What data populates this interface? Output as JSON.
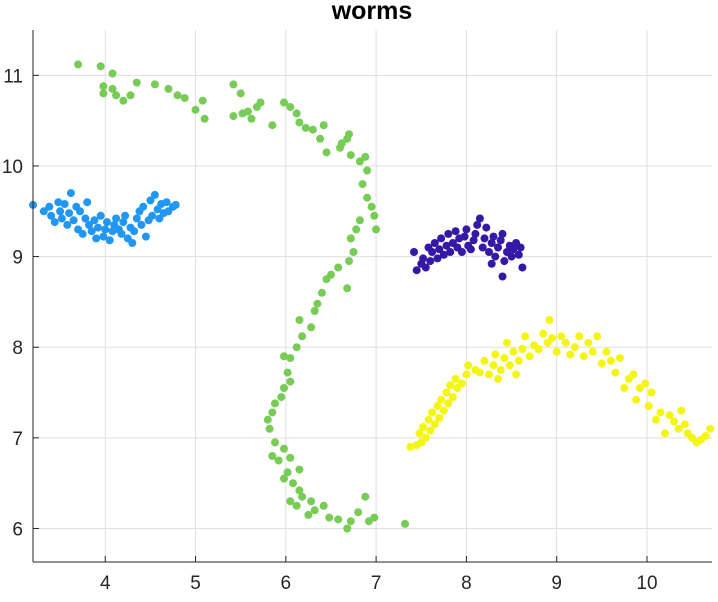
{
  "chart_data": {
    "type": "scatter",
    "title": "worms",
    "xlabel": "",
    "ylabel": "",
    "xlim": [
      3.2,
      10.72
    ],
    "ylim": [
      5.63,
      11.5
    ],
    "x_ticks": [
      4,
      5,
      6,
      7,
      8,
      9,
      10
    ],
    "y_ticks": [
      6,
      7,
      8,
      9,
      10,
      11
    ],
    "grid": true,
    "series": [
      {
        "color": "#2196f3",
        "points": [
          [
            3.2,
            9.57
          ],
          [
            3.32,
            9.5
          ],
          [
            3.38,
            9.55
          ],
          [
            3.4,
            9.45
          ],
          [
            3.44,
            9.38
          ],
          [
            3.48,
            9.6
          ],
          [
            3.5,
            9.5
          ],
          [
            3.52,
            9.42
          ],
          [
            3.55,
            9.58
          ],
          [
            3.58,
            9.35
          ],
          [
            3.6,
            9.48
          ],
          [
            3.62,
            9.7
          ],
          [
            3.65,
            9.4
          ],
          [
            3.68,
            9.55
          ],
          [
            3.7,
            9.3
          ],
          [
            3.72,
            9.5
          ],
          [
            3.75,
            9.25
          ],
          [
            3.78,
            9.42
          ],
          [
            3.8,
            9.6
          ],
          [
            3.82,
            9.35
          ],
          [
            3.85,
            9.28
          ],
          [
            3.88,
            9.4
          ],
          [
            3.9,
            9.2
          ],
          [
            3.92,
            9.32
          ],
          [
            3.95,
            9.45
          ],
          [
            3.98,
            9.22
          ],
          [
            4.0,
            9.3
          ],
          [
            4.02,
            9.38
          ],
          [
            4.05,
            9.18
          ],
          [
            4.08,
            9.28
          ],
          [
            4.1,
            9.35
          ],
          [
            4.12,
            9.42
          ],
          [
            4.15,
            9.3
          ],
          [
            4.18,
            9.25
          ],
          [
            4.2,
            9.38
          ],
          [
            4.22,
            9.45
          ],
          [
            4.25,
            9.2
          ],
          [
            4.28,
            9.32
          ],
          [
            4.3,
            9.15
          ],
          [
            4.32,
            9.28
          ],
          [
            4.35,
            9.42
          ],
          [
            4.38,
            9.5
          ],
          [
            4.4,
            9.35
          ],
          [
            4.42,
            9.55
          ],
          [
            4.45,
            9.22
          ],
          [
            4.48,
            9.4
          ],
          [
            4.5,
            9.62
          ],
          [
            4.52,
            9.45
          ],
          [
            4.55,
            9.68
          ],
          [
            4.58,
            9.52
          ],
          [
            4.6,
            9.42
          ],
          [
            4.62,
            9.58
          ],
          [
            4.65,
            9.48
          ],
          [
            4.68,
            9.6
          ],
          [
            4.7,
            9.5
          ],
          [
            4.75,
            9.55
          ],
          [
            4.78,
            9.57
          ]
        ]
      },
      {
        "color": "#77cc55",
        "points": [
          [
            3.7,
            11.12
          ],
          [
            3.95,
            11.1
          ],
          [
            4.08,
            11.02
          ],
          [
            3.98,
            10.88
          ],
          [
            4.08,
            10.85
          ],
          [
            3.98,
            10.8
          ],
          [
            4.12,
            10.78
          ],
          [
            4.2,
            10.72
          ],
          [
            4.28,
            10.78
          ],
          [
            4.35,
            10.92
          ],
          [
            4.55,
            10.9
          ],
          [
            4.7,
            10.85
          ],
          [
            4.8,
            10.78
          ],
          [
            4.88,
            10.75
          ],
          [
            5.0,
            10.62
          ],
          [
            5.08,
            10.72
          ],
          [
            5.1,
            10.52
          ],
          [
            5.42,
            10.9
          ],
          [
            5.5,
            10.8
          ],
          [
            5.52,
            10.58
          ],
          [
            5.42,
            10.55
          ],
          [
            5.58,
            10.6
          ],
          [
            5.62,
            10.52
          ],
          [
            5.68,
            10.65
          ],
          [
            5.72,
            10.7
          ],
          [
            5.85,
            10.45
          ],
          [
            5.98,
            10.7
          ],
          [
            6.05,
            10.65
          ],
          [
            6.12,
            10.58
          ],
          [
            6.15,
            10.48
          ],
          [
            6.22,
            10.42
          ],
          [
            6.3,
            10.4
          ],
          [
            6.42,
            10.45
          ],
          [
            6.38,
            10.3
          ],
          [
            6.45,
            10.15
          ],
          [
            6.6,
            10.2
          ],
          [
            6.62,
            10.25
          ],
          [
            6.68,
            10.3
          ],
          [
            6.7,
            10.35
          ],
          [
            6.72,
            10.12
          ],
          [
            6.82,
            10.05
          ],
          [
            6.88,
            10.1
          ],
          [
            6.9,
            9.95
          ],
          [
            6.85,
            9.8
          ],
          [
            6.9,
            9.65
          ],
          [
            6.95,
            9.55
          ],
          [
            6.98,
            9.45
          ],
          [
            7.0,
            9.3
          ],
          [
            6.82,
            9.4
          ],
          [
            6.78,
            9.3
          ],
          [
            6.72,
            9.2
          ],
          [
            6.75,
            9.05
          ],
          [
            6.7,
            8.95
          ],
          [
            6.58,
            8.88
          ],
          [
            6.5,
            8.8
          ],
          [
            6.45,
            8.75
          ],
          [
            6.68,
            8.65
          ],
          [
            6.4,
            8.6
          ],
          [
            6.35,
            8.48
          ],
          [
            6.32,
            8.4
          ],
          [
            6.28,
            8.22
          ],
          [
            6.15,
            8.3
          ],
          [
            6.18,
            8.12
          ],
          [
            6.12,
            8.0
          ],
          [
            6.05,
            7.88
          ],
          [
            5.98,
            7.9
          ],
          [
            6.02,
            7.72
          ],
          [
            6.05,
            7.62
          ],
          [
            5.98,
            7.55
          ],
          [
            5.95,
            7.45
          ],
          [
            5.88,
            7.38
          ],
          [
            5.85,
            7.28
          ],
          [
            5.8,
            7.2
          ],
          [
            5.82,
            7.1
          ],
          [
            5.88,
            6.95
          ],
          [
            5.98,
            6.88
          ],
          [
            5.85,
            6.8
          ],
          [
            5.92,
            6.75
          ],
          [
            6.02,
            6.62
          ],
          [
            6.05,
            6.78
          ],
          [
            6.15,
            6.65
          ],
          [
            5.98,
            6.55
          ],
          [
            6.08,
            6.5
          ],
          [
            6.15,
            6.42
          ],
          [
            6.05,
            6.3
          ],
          [
            6.12,
            6.25
          ],
          [
            6.18,
            6.35
          ],
          [
            6.28,
            6.3
          ],
          [
            6.25,
            6.15
          ],
          [
            6.32,
            6.2
          ],
          [
            6.42,
            6.25
          ],
          [
            6.48,
            6.12
          ],
          [
            6.58,
            6.1
          ],
          [
            6.72,
            6.08
          ],
          [
            6.8,
            6.18
          ],
          [
            6.68,
            6.0
          ],
          [
            6.92,
            6.08
          ],
          [
            6.98,
            6.12
          ],
          [
            6.88,
            6.35
          ],
          [
            7.32,
            6.05
          ]
        ]
      },
      {
        "color": "#3418a6",
        "points": [
          [
            7.45,
            8.85
          ],
          [
            7.5,
            8.92
          ],
          [
            7.42,
            9.05
          ],
          [
            7.52,
            8.98
          ],
          [
            7.55,
            8.88
          ],
          [
            7.58,
            9.1
          ],
          [
            7.6,
            8.95
          ],
          [
            7.62,
            9.05
          ],
          [
            7.65,
            9.15
          ],
          [
            7.68,
            8.98
          ],
          [
            7.7,
            9.08
          ],
          [
            7.72,
            9.2
          ],
          [
            7.75,
            9.02
          ],
          [
            7.78,
            9.12
          ],
          [
            7.8,
            9.25
          ],
          [
            7.82,
            9.05
          ],
          [
            7.85,
            9.15
          ],
          [
            7.88,
            9.28
          ],
          [
            7.9,
            9.1
          ],
          [
            7.92,
            9.2
          ],
          [
            7.95,
            9.05
          ],
          [
            7.98,
            9.22
          ],
          [
            8.0,
            9.3
          ],
          [
            8.02,
            9.12
          ],
          [
            8.05,
            9.08
          ],
          [
            8.08,
            9.18
          ],
          [
            8.1,
            9.25
          ],
          [
            8.12,
            9.35
          ],
          [
            8.15,
            9.42
          ],
          [
            8.18,
            9.1
          ],
          [
            8.2,
            9.2
          ],
          [
            8.22,
            9.32
          ],
          [
            8.25,
            9.05
          ],
          [
            8.28,
            9.15
          ],
          [
            8.3,
            9.22
          ],
          [
            8.32,
            9.0
          ],
          [
            8.35,
            9.1
          ],
          [
            8.38,
            9.18
          ],
          [
            8.4,
            9.25
          ],
          [
            8.42,
            8.95
          ],
          [
            8.45,
            9.05
          ],
          [
            8.48,
            9.12
          ],
          [
            8.5,
            9.0
          ],
          [
            8.52,
            9.08
          ],
          [
            8.55,
            9.15
          ],
          [
            8.58,
            9.02
          ],
          [
            8.6,
            9.1
          ],
          [
            8.62,
            8.88
          ],
          [
            8.4,
            8.78
          ],
          [
            8.28,
            8.92
          ]
        ]
      },
      {
        "color": "#f5f514",
        "points": [
          [
            7.38,
            6.9
          ],
          [
            7.45,
            6.92
          ],
          [
            7.5,
            6.95
          ],
          [
            7.48,
            7.05
          ],
          [
            7.55,
            7.0
          ],
          [
            7.52,
            7.12
          ],
          [
            7.6,
            7.08
          ],
          [
            7.58,
            7.2
          ],
          [
            7.65,
            7.15
          ],
          [
            7.62,
            7.28
          ],
          [
            7.7,
            7.22
          ],
          [
            7.68,
            7.35
          ],
          [
            7.75,
            7.3
          ],
          [
            7.72,
            7.42
          ],
          [
            7.8,
            7.38
          ],
          [
            7.78,
            7.5
          ],
          [
            7.85,
            7.45
          ],
          [
            7.82,
            7.58
          ],
          [
            7.9,
            7.55
          ],
          [
            7.88,
            7.65
          ],
          [
            7.95,
            7.6
          ],
          [
            8.0,
            7.7
          ],
          [
            8.02,
            7.8
          ],
          [
            8.1,
            7.75
          ],
          [
            8.15,
            7.72
          ],
          [
            8.2,
            7.85
          ],
          [
            8.25,
            7.7
          ],
          [
            8.3,
            7.8
          ],
          [
            8.32,
            7.92
          ],
          [
            8.35,
            7.65
          ],
          [
            8.38,
            7.75
          ],
          [
            8.42,
            7.88
          ],
          [
            8.45,
            8.05
          ],
          [
            8.48,
            7.8
          ],
          [
            8.52,
            7.95
          ],
          [
            8.55,
            7.7
          ],
          [
            8.58,
            7.85
          ],
          [
            8.62,
            7.98
          ],
          [
            8.65,
            8.12
          ],
          [
            8.7,
            7.9
          ],
          [
            8.75,
            8.02
          ],
          [
            8.8,
            7.98
          ],
          [
            8.85,
            8.15
          ],
          [
            8.9,
            8.05
          ],
          [
            8.92,
            8.3
          ],
          [
            8.95,
            8.1
          ],
          [
            9.0,
            7.95
          ],
          [
            9.05,
            8.12
          ],
          [
            9.1,
            8.05
          ],
          [
            9.15,
            7.92
          ],
          [
            9.2,
            8.0
          ],
          [
            9.25,
            8.12
          ],
          [
            9.3,
            7.9
          ],
          [
            9.35,
            8.05
          ],
          [
            9.4,
            7.95
          ],
          [
            9.45,
            8.12
          ],
          [
            9.5,
            7.82
          ],
          [
            9.55,
            7.95
          ],
          [
            9.6,
            7.85
          ],
          [
            9.65,
            7.72
          ],
          [
            9.7,
            7.88
          ],
          [
            9.75,
            7.55
          ],
          [
            9.8,
            7.65
          ],
          [
            9.85,
            7.7
          ],
          [
            9.88,
            7.42
          ],
          [
            9.92,
            7.55
          ],
          [
            9.98,
            7.6
          ],
          [
            10.02,
            7.35
          ],
          [
            10.05,
            7.5
          ],
          [
            10.1,
            7.2
          ],
          [
            10.15,
            7.28
          ],
          [
            10.2,
            7.05
          ],
          [
            10.25,
            7.25
          ],
          [
            10.3,
            7.18
          ],
          [
            10.35,
            7.1
          ],
          [
            10.38,
            7.3
          ],
          [
            10.42,
            7.15
          ],
          [
            10.45,
            7.05
          ],
          [
            10.5,
            7.0
          ],
          [
            10.55,
            6.95
          ],
          [
            10.6,
            6.98
          ],
          [
            10.65,
            7.02
          ],
          [
            10.7,
            7.1
          ]
        ]
      }
    ]
  }
}
